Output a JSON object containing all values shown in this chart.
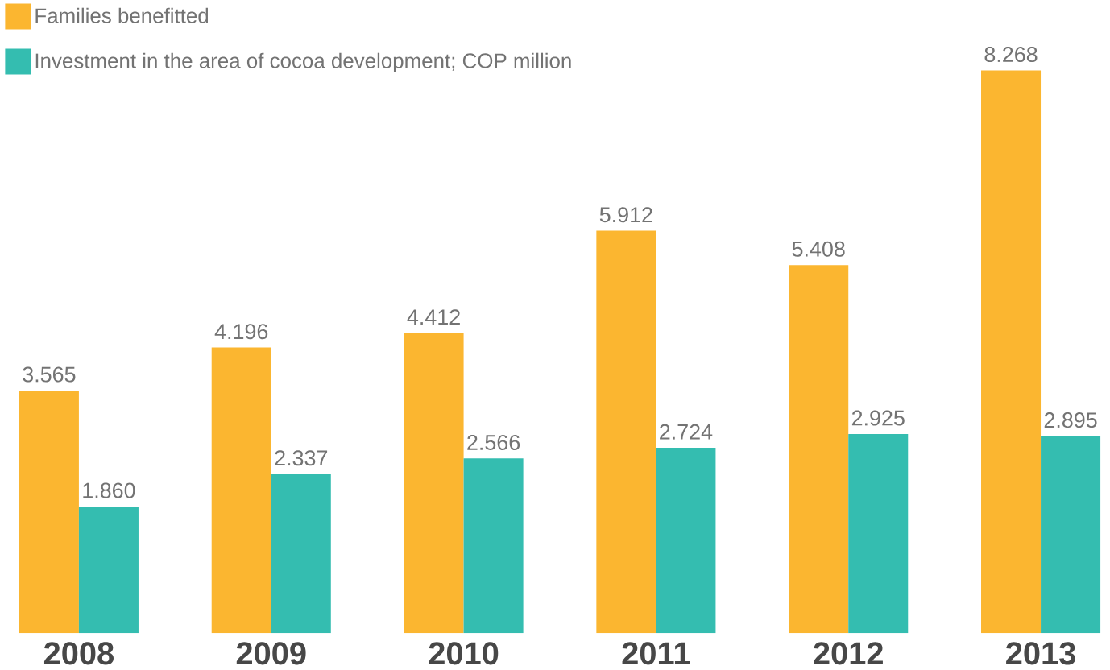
{
  "chart_data": {
    "type": "bar",
    "categories": [
      "2008",
      "2009",
      "2010",
      "2011",
      "2012",
      "2013"
    ],
    "series": [
      {
        "name": "Families benefitted",
        "color": "#fbb630",
        "values": [
          3.565,
          4.196,
          4.412,
          5.912,
          5.408,
          8.268
        ],
        "value_labels": [
          "3.565",
          "4.196",
          "4.412",
          "5.912",
          "5.408",
          "8.268"
        ]
      },
      {
        "name": "Investment in the area of cocoa development; COP million",
        "color": "#34bdb0",
        "values": [
          1.86,
          2.337,
          2.566,
          2.724,
          2.925,
          2.895
        ],
        "value_labels": [
          "1.860",
          "2.337",
          "2.566",
          "2.724",
          "2.925",
          "2.895"
        ]
      }
    ],
    "legend": "top left",
    "grid": false
  }
}
